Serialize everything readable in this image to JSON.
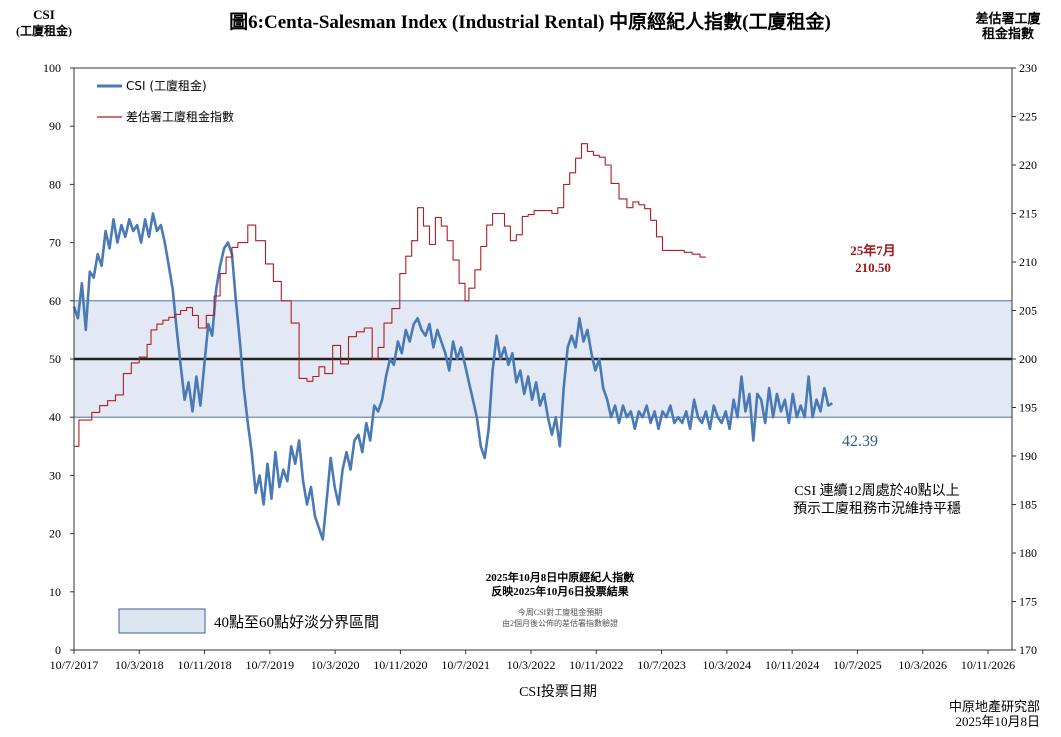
{
  "chart_data": {
    "type": "line",
    "title": "圖6:Centa-Salesman Index (Industrial Rental)   中原經紀人指數(工廈租金)",
    "left_axis_label": [
      "CSI",
      "(工廈租金)"
    ],
    "right_axis_label": [
      "差估署工廈",
      "租金指數"
    ],
    "xlabel": "CSI投票日期",
    "y_left": {
      "min": 0,
      "max": 100,
      "step": 10,
      "ticks": [
        "0",
        "10",
        "20",
        "30",
        "40",
        "50",
        "60",
        "70",
        "80",
        "90",
        "100"
      ]
    },
    "y_right": {
      "min": 170,
      "max": 230,
      "step": 5,
      "ticks": [
        "170",
        "175",
        "180",
        "185",
        "190",
        "195",
        "200",
        "205",
        "210",
        "215",
        "220",
        "225",
        "230"
      ]
    },
    "x_range": [
      2017.5,
      2027.0
    ],
    "x_ticks": [
      "10/7/2017",
      "10/3/2018",
      "10/11/2018",
      "10/7/2019",
      "10/3/2020",
      "10/11/2020",
      "10/7/2021",
      "10/3/2022",
      "10/11/2022",
      "10/7/2023",
      "10/3/2024",
      "10/11/2024",
      "10/7/2025",
      "10/3/2026",
      "10/11/2026"
    ],
    "band": {
      "from": 40,
      "to": 60,
      "fill": "#e3e9f4",
      "stroke": "#4d6fa8"
    },
    "midline": 50,
    "series": [
      {
        "name": "CSI (工廈租金)",
        "axis": "left",
        "color": "#4a7ab5",
        "points": [
          [
            2017.5,
            59
          ],
          [
            2017.54,
            57
          ],
          [
            2017.58,
            63
          ],
          [
            2017.62,
            55
          ],
          [
            2017.66,
            65
          ],
          [
            2017.7,
            64
          ],
          [
            2017.74,
            68
          ],
          [
            2017.78,
            66
          ],
          [
            2017.82,
            72
          ],
          [
            2017.86,
            69
          ],
          [
            2017.9,
            74
          ],
          [
            2017.94,
            70
          ],
          [
            2017.98,
            73
          ],
          [
            2018.02,
            71
          ],
          [
            2018.06,
            74
          ],
          [
            2018.1,
            72
          ],
          [
            2018.14,
            73
          ],
          [
            2018.18,
            70
          ],
          [
            2018.22,
            74
          ],
          [
            2018.26,
            71
          ],
          [
            2018.3,
            75
          ],
          [
            2018.34,
            72
          ],
          [
            2018.38,
            73
          ],
          [
            2018.42,
            70
          ],
          [
            2018.46,
            66
          ],
          [
            2018.5,
            62
          ],
          [
            2018.54,
            55
          ],
          [
            2018.58,
            49
          ],
          [
            2018.62,
            43
          ],
          [
            2018.66,
            46
          ],
          [
            2018.7,
            41
          ],
          [
            2018.74,
            47
          ],
          [
            2018.78,
            42
          ],
          [
            2018.82,
            49
          ],
          [
            2018.86,
            56
          ],
          [
            2018.9,
            54
          ],
          [
            2018.94,
            62
          ],
          [
            2018.98,
            66
          ],
          [
            2019.02,
            69
          ],
          [
            2019.06,
            70
          ],
          [
            2019.1,
            68
          ],
          [
            2019.14,
            60
          ],
          [
            2019.18,
            53
          ],
          [
            2019.22,
            45
          ],
          [
            2019.26,
            39
          ],
          [
            2019.3,
            34
          ],
          [
            2019.34,
            27
          ],
          [
            2019.38,
            30
          ],
          [
            2019.42,
            25
          ],
          [
            2019.46,
            32
          ],
          [
            2019.5,
            26
          ],
          [
            2019.54,
            34
          ],
          [
            2019.58,
            28
          ],
          [
            2019.62,
            31
          ],
          [
            2019.66,
            29
          ],
          [
            2019.7,
            35
          ],
          [
            2019.74,
            32
          ],
          [
            2019.78,
            36
          ],
          [
            2019.82,
            29
          ],
          [
            2019.86,
            25
          ],
          [
            2019.9,
            28
          ],
          [
            2019.94,
            23
          ],
          [
            2019.98,
            21
          ],
          [
            2020.02,
            19
          ],
          [
            2020.06,
            26
          ],
          [
            2020.1,
            33
          ],
          [
            2020.14,
            28
          ],
          [
            2020.18,
            25
          ],
          [
            2020.22,
            31
          ],
          [
            2020.26,
            34
          ],
          [
            2020.3,
            31
          ],
          [
            2020.34,
            36
          ],
          [
            2020.38,
            37
          ],
          [
            2020.42,
            34
          ],
          [
            2020.46,
            39
          ],
          [
            2020.5,
            36
          ],
          [
            2020.54,
            42
          ],
          [
            2020.58,
            41
          ],
          [
            2020.62,
            43
          ],
          [
            2020.66,
            47
          ],
          [
            2020.7,
            50
          ],
          [
            2020.74,
            49
          ],
          [
            2020.78,
            53
          ],
          [
            2020.82,
            51
          ],
          [
            2020.86,
            55
          ],
          [
            2020.9,
            53
          ],
          [
            2020.94,
            56
          ],
          [
            2020.98,
            57
          ],
          [
            2021.02,
            55
          ],
          [
            2021.06,
            54
          ],
          [
            2021.1,
            56
          ],
          [
            2021.14,
            52
          ],
          [
            2021.18,
            55
          ],
          [
            2021.22,
            53
          ],
          [
            2021.26,
            51
          ],
          [
            2021.3,
            48
          ],
          [
            2021.34,
            53
          ],
          [
            2021.38,
            50
          ],
          [
            2021.42,
            52
          ],
          [
            2021.46,
            49
          ],
          [
            2021.5,
            46
          ],
          [
            2021.54,
            43
          ],
          [
            2021.58,
            40
          ],
          [
            2021.62,
            35
          ],
          [
            2021.66,
            33
          ],
          [
            2021.7,
            38
          ],
          [
            2021.74,
            48
          ],
          [
            2021.78,
            54
          ],
          [
            2021.82,
            50
          ],
          [
            2021.86,
            52
          ],
          [
            2021.9,
            49
          ],
          [
            2021.94,
            51
          ],
          [
            2021.98,
            46
          ],
          [
            2022.02,
            48
          ],
          [
            2022.06,
            44
          ],
          [
            2022.1,
            47
          ],
          [
            2022.14,
            43
          ],
          [
            2022.18,
            46
          ],
          [
            2022.22,
            42
          ],
          [
            2022.26,
            44
          ],
          [
            2022.3,
            40
          ],
          [
            2022.34,
            37
          ],
          [
            2022.38,
            40
          ],
          [
            2022.42,
            35
          ],
          [
            2022.46,
            45
          ],
          [
            2022.5,
            52
          ],
          [
            2022.54,
            54
          ],
          [
            2022.58,
            52
          ],
          [
            2022.62,
            57
          ],
          [
            2022.66,
            53
          ],
          [
            2022.7,
            55
          ],
          [
            2022.74,
            51
          ],
          [
            2022.78,
            48
          ],
          [
            2022.82,
            50
          ],
          [
            2022.86,
            45
          ],
          [
            2022.9,
            43
          ],
          [
            2022.94,
            40
          ],
          [
            2022.98,
            42
          ],
          [
            2023.02,
            39
          ],
          [
            2023.06,
            42
          ],
          [
            2023.1,
            40
          ],
          [
            2023.14,
            41
          ],
          [
            2023.18,
            38
          ],
          [
            2023.22,
            41
          ],
          [
            2023.26,
            40
          ],
          [
            2023.3,
            42
          ],
          [
            2023.34,
            39
          ],
          [
            2023.38,
            41
          ],
          [
            2023.42,
            38
          ],
          [
            2023.46,
            41
          ],
          [
            2023.5,
            40
          ],
          [
            2023.54,
            42
          ],
          [
            2023.58,
            39
          ],
          [
            2023.62,
            40
          ],
          [
            2023.66,
            39
          ],
          [
            2023.7,
            41
          ],
          [
            2023.74,
            38
          ],
          [
            2023.78,
            43
          ],
          [
            2023.82,
            40
          ],
          [
            2023.86,
            39
          ],
          [
            2023.9,
            41
          ],
          [
            2023.94,
            38
          ],
          [
            2023.98,
            42
          ],
          [
            2024.02,
            40
          ],
          [
            2024.06,
            39
          ],
          [
            2024.1,
            41
          ],
          [
            2024.14,
            38
          ],
          [
            2024.18,
            43
          ],
          [
            2024.22,
            40
          ],
          [
            2024.26,
            47
          ],
          [
            2024.3,
            41
          ],
          [
            2024.34,
            44
          ],
          [
            2024.38,
            36
          ],
          [
            2024.42,
            44
          ],
          [
            2024.46,
            43
          ],
          [
            2024.5,
            39
          ],
          [
            2024.54,
            45
          ],
          [
            2024.58,
            40
          ],
          [
            2024.62,
            44
          ],
          [
            2024.66,
            41
          ],
          [
            2024.7,
            43
          ],
          [
            2024.74,
            39
          ],
          [
            2024.78,
            44
          ],
          [
            2024.82,
            40
          ],
          [
            2024.86,
            42
          ],
          [
            2024.9,
            40
          ],
          [
            2024.94,
            47
          ],
          [
            2024.98,
            40
          ],
          [
            2025.02,
            43
          ],
          [
            2025.06,
            41
          ],
          [
            2025.1,
            45
          ],
          [
            2025.14,
            42
          ],
          [
            2025.18,
            42.39
          ]
        ]
      },
      {
        "name": "差估署工廈租金指數",
        "axis": "right",
        "color": "#b01c22",
        "step": true,
        "points": [
          [
            2017.5,
            191
          ],
          [
            2017.55,
            193.7
          ],
          [
            2017.68,
            194.5
          ],
          [
            2017.76,
            195.2
          ],
          [
            2017.84,
            195.7
          ],
          [
            2017.92,
            196.3
          ],
          [
            2018.0,
            198.5
          ],
          [
            2018.08,
            199.6
          ],
          [
            2018.16,
            200.2
          ],
          [
            2018.24,
            201.5
          ],
          [
            2018.28,
            203.0
          ],
          [
            2018.34,
            203.6
          ],
          [
            2018.4,
            204.0
          ],
          [
            2018.46,
            204.3
          ],
          [
            2018.52,
            204.6
          ],
          [
            2018.58,
            205.0
          ],
          [
            2018.64,
            205.3
          ],
          [
            2018.7,
            204.5
          ],
          [
            2018.76,
            203.2
          ],
          [
            2018.84,
            204.5
          ],
          [
            2018.92,
            206.5
          ],
          [
            2018.98,
            208.8
          ],
          [
            2019.04,
            210.5
          ],
          [
            2019.1,
            211.5
          ],
          [
            2019.16,
            212.0
          ],
          [
            2019.26,
            213.8
          ],
          [
            2019.34,
            212.2
          ],
          [
            2019.44,
            209.8
          ],
          [
            2019.52,
            208.0
          ],
          [
            2019.6,
            206.0
          ],
          [
            2019.7,
            203.7
          ],
          [
            2019.78,
            198.0
          ],
          [
            2019.86,
            197.7
          ],
          [
            2019.92,
            198.2
          ],
          [
            2019.98,
            199.2
          ],
          [
            2020.04,
            198.5
          ],
          [
            2020.12,
            201.4
          ],
          [
            2020.2,
            199.5
          ],
          [
            2020.28,
            202.3
          ],
          [
            2020.36,
            202.8
          ],
          [
            2020.44,
            203.2
          ],
          [
            2020.52,
            200.0
          ],
          [
            2020.58,
            201.2
          ],
          [
            2020.64,
            203.7
          ],
          [
            2020.72,
            205.2
          ],
          [
            2020.8,
            208.8
          ],
          [
            2020.86,
            210.6
          ],
          [
            2020.92,
            212.2
          ],
          [
            2020.98,
            215.6
          ],
          [
            2021.04,
            213.7
          ],
          [
            2021.1,
            211.8
          ],
          [
            2021.16,
            214.6
          ],
          [
            2021.22,
            213.7
          ],
          [
            2021.28,
            212.2
          ],
          [
            2021.34,
            210.2
          ],
          [
            2021.4,
            207.8
          ],
          [
            2021.46,
            206.0
          ],
          [
            2021.5,
            207.3
          ],
          [
            2021.56,
            209.2
          ],
          [
            2021.62,
            211.6
          ],
          [
            2021.68,
            213.8
          ],
          [
            2021.74,
            215.0
          ],
          [
            2021.8,
            215.0
          ],
          [
            2021.86,
            213.7
          ],
          [
            2021.92,
            212.2
          ],
          [
            2021.98,
            212.8
          ],
          [
            2022.04,
            214.7
          ],
          [
            2022.1,
            214.9
          ],
          [
            2022.16,
            215.3
          ],
          [
            2022.22,
            215.3
          ],
          [
            2022.34,
            215.0
          ],
          [
            2022.4,
            215.6
          ],
          [
            2022.46,
            218.0
          ],
          [
            2022.52,
            219.2
          ],
          [
            2022.58,
            220.7
          ],
          [
            2022.64,
            222.2
          ],
          [
            2022.7,
            221.4
          ],
          [
            2022.76,
            221.0
          ],
          [
            2022.82,
            220.8
          ],
          [
            2022.88,
            220.0
          ],
          [
            2022.94,
            218.1
          ],
          [
            2023.02,
            216.5
          ],
          [
            2023.1,
            215.6
          ],
          [
            2023.16,
            216.2
          ],
          [
            2023.22,
            215.9
          ],
          [
            2023.28,
            215.5
          ],
          [
            2023.34,
            214.3
          ],
          [
            2023.4,
            212.6
          ],
          [
            2023.46,
            211.2
          ],
          [
            2023.52,
            211.2
          ],
          [
            2023.6,
            211.2
          ],
          [
            2023.68,
            211.0
          ],
          [
            2023.76,
            210.8
          ],
          [
            2023.84,
            210.5
          ],
          [
            2023.9,
            210.5
          ]
        ]
      }
    ],
    "annotations": {
      "last_rental_label": "25年7月",
      "last_rental_value": "210.50",
      "last_csi_value": "42.39",
      "comment_line1": "CSI 連續12周處於40點以上",
      "comment_line2": "預示工廈租務市況維持平穩",
      "survey_line1": "2025年10月8日中原經紀人指數",
      "survey_line2": "反映2025年10月6日投票結果",
      "note_line1": "今周CSI對工廈租金預期",
      "note_line2": "由2個月後公佈的差估署指數驗證",
      "band_legend": "40點至60點好淡分界區間"
    },
    "legend": "top-left"
  },
  "footer": {
    "source": "中原地產研究部",
    "date": "2025年10月8日"
  }
}
